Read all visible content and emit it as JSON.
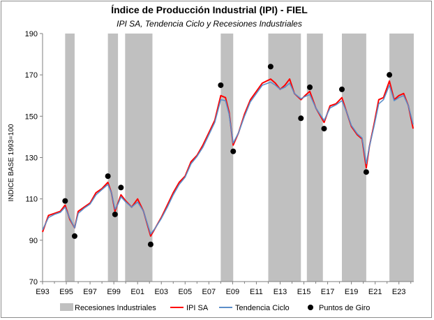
{
  "chart_data": {
    "type": "line",
    "title": "Índice de Producción Industrial (IPI) - FIEL",
    "subtitle": "IPI SA, Tendencia Ciclo y Recesiones Industriales",
    "ylabel": "INDICE BASE 1993=100",
    "xlabel": "",
    "ylim": [
      70,
      190
    ],
    "yticks": [
      70,
      90,
      110,
      130,
      150,
      170,
      190
    ],
    "xlim": [
      1993.0,
      2024.25
    ],
    "xticks": [
      {
        "value": 1993,
        "label": "E93"
      },
      {
        "value": 1995,
        "label": "E95"
      },
      {
        "value": 1997,
        "label": "E97"
      },
      {
        "value": 1999,
        "label": "E99"
      },
      {
        "value": 2001,
        "label": "E01"
      },
      {
        "value": 2003,
        "label": "E03"
      },
      {
        "value": 2005,
        "label": "E05"
      },
      {
        "value": 2007,
        "label": "E07"
      },
      {
        "value": 2009,
        "label": "E09"
      },
      {
        "value": 2011,
        "label": "E11"
      },
      {
        "value": 2013,
        "label": "E13"
      },
      {
        "value": 2015,
        "label": "E15"
      },
      {
        "value": 2017,
        "label": "E17"
      },
      {
        "value": 2019,
        "label": "E19"
      },
      {
        "value": 2021,
        "label": "E21"
      },
      {
        "value": 2023,
        "label": "E23"
      }
    ],
    "grid": false,
    "legend_position": "bottom",
    "recessions": [
      [
        1994.9,
        1995.7
      ],
      [
        1998.5,
        1999.35
      ],
      [
        1999.95,
        2002.25
      ],
      [
        2008.0,
        2009.05
      ],
      [
        2012.0,
        2014.75
      ],
      [
        2015.25,
        2016.6
      ],
      [
        2018.2,
        2020.25
      ],
      [
        2022.2,
        2024.25
      ]
    ],
    "turning_points": [
      {
        "x": 1994.9,
        "y": 109
      },
      {
        "x": 1995.7,
        "y": 92
      },
      {
        "x": 1998.5,
        "y": 121
      },
      {
        "x": 1999.1,
        "y": 102.5
      },
      {
        "x": 1999.6,
        "y": 115.5
      },
      {
        "x": 2002.1,
        "y": 88
      },
      {
        "x": 2008.0,
        "y": 165
      },
      {
        "x": 2009.05,
        "y": 133
      },
      {
        "x": 2012.2,
        "y": 174
      },
      {
        "x": 2014.75,
        "y": 149
      },
      {
        "x": 2015.5,
        "y": 164
      },
      {
        "x": 2016.7,
        "y": 144
      },
      {
        "x": 2018.2,
        "y": 163
      },
      {
        "x": 2020.25,
        "y": 123
      },
      {
        "x": 2022.2,
        "y": 170
      }
    ],
    "series": [
      {
        "name": "IPI SA",
        "color": "#ff0000",
        "x": [
          1993.0,
          1993.5,
          1994.0,
          1994.5,
          1994.9,
          1995.3,
          1995.7,
          1996.0,
          1996.5,
          1997.0,
          1997.5,
          1998.0,
          1998.5,
          1998.8,
          1999.1,
          1999.35,
          1999.6,
          2000.0,
          2000.5,
          2001.0,
          2001.5,
          2002.1,
          2002.5,
          2003.0,
          2003.5,
          2004.0,
          2004.5,
          2005.0,
          2005.5,
          2006.0,
          2006.5,
          2007.0,
          2007.5,
          2008.0,
          2008.4,
          2008.7,
          2009.05,
          2009.5,
          2010.0,
          2010.5,
          2011.0,
          2011.5,
          2012.2,
          2012.6,
          2013.0,
          2013.4,
          2013.8,
          2014.2,
          2014.75,
          2015.1,
          2015.5,
          2016.0,
          2016.7,
          2017.2,
          2017.7,
          2018.2,
          2018.6,
          2019.0,
          2019.5,
          2019.9,
          2020.25,
          2020.5,
          2020.9,
          2021.3,
          2021.7,
          2022.2,
          2022.6,
          2023.0,
          2023.4,
          2023.8,
          2024.2
        ],
        "y": [
          94,
          102,
          103,
          104,
          107,
          100,
          96,
          104,
          106,
          108,
          113,
          115,
          118,
          113,
          104,
          108,
          112,
          109,
          106,
          110,
          104,
          92,
          96,
          101,
          107,
          113,
          118,
          121,
          128,
          131,
          136,
          142,
          148,
          160,
          159,
          152,
          136,
          142,
          151,
          158,
          162,
          166,
          168,
          166,
          163,
          165,
          168,
          161,
          158,
          160,
          162,
          154,
          147,
          155,
          156,
          159,
          152,
          145,
          141,
          139,
          125,
          135,
          146,
          158,
          159,
          167,
          158,
          160,
          161,
          155,
          144
        ]
      },
      {
        "name": "Tendencia Ciclo",
        "color": "#5b8ec9",
        "x": [
          1993.0,
          1993.5,
          1994.0,
          1994.5,
          1994.9,
          1995.3,
          1995.7,
          1996.0,
          1996.5,
          1997.0,
          1997.5,
          1998.0,
          1998.5,
          1998.8,
          1999.1,
          1999.35,
          1999.6,
          2000.0,
          2000.5,
          2001.0,
          2001.5,
          2002.1,
          2002.5,
          2003.0,
          2003.5,
          2004.0,
          2004.5,
          2005.0,
          2005.5,
          2006.0,
          2006.5,
          2007.0,
          2007.5,
          2008.0,
          2008.4,
          2008.7,
          2009.05,
          2009.5,
          2010.0,
          2010.5,
          2011.0,
          2011.5,
          2012.2,
          2012.6,
          2013.0,
          2013.4,
          2013.8,
          2014.2,
          2014.75,
          2015.1,
          2015.5,
          2016.0,
          2016.7,
          2017.2,
          2017.7,
          2018.2,
          2018.6,
          2019.0,
          2019.5,
          2019.9,
          2020.25,
          2020.5,
          2020.9,
          2021.3,
          2021.7,
          2022.2,
          2022.6,
          2023.0,
          2023.4,
          2023.8,
          2024.2
        ],
        "y": [
          95,
          101,
          102.5,
          103.5,
          106,
          100.5,
          96,
          103,
          105.5,
          107.5,
          112,
          114.5,
          117,
          113,
          105,
          107.5,
          111,
          108.5,
          106,
          108.5,
          104,
          93,
          96,
          100.5,
          106,
          112,
          117,
          120.5,
          127,
          130.5,
          135,
          141,
          147,
          158,
          157.5,
          151,
          137,
          142,
          150,
          157,
          161,
          165,
          166.5,
          165,
          163,
          164,
          166,
          161,
          158.5,
          159.5,
          160.5,
          154,
          148,
          154,
          155.5,
          157.5,
          152,
          145.5,
          141.5,
          139.5,
          127,
          135,
          145,
          156,
          158,
          165,
          157.5,
          159,
          160,
          155,
          146
        ]
      }
    ],
    "legend": [
      {
        "label": "Recesiones Industriales",
        "kind": "band",
        "color": "#c0c0c0"
      },
      {
        "label": "IPI SA",
        "kind": "line",
        "color": "#ff0000"
      },
      {
        "label": "Tendencia Ciclo",
        "kind": "line",
        "color": "#5b8ec9"
      },
      {
        "label": "Puntos de Giro",
        "kind": "dot",
        "color": "#000000"
      }
    ]
  }
}
